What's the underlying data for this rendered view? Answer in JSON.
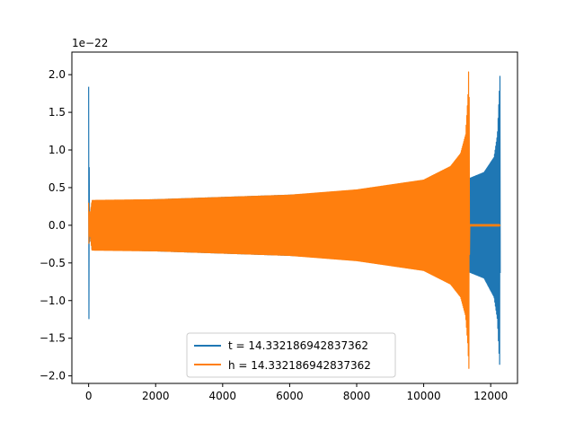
{
  "chart_data": {
    "type": "line",
    "offset_label": "1e−22",
    "xlim": [
      -500,
      12800
    ],
    "ylim": [
      -2.1,
      2.3
    ],
    "x_ticks": [
      0,
      2000,
      4000,
      6000,
      8000,
      10000,
      12000
    ],
    "x_tick_labels": [
      "0",
      "2000",
      "4000",
      "6000",
      "8000",
      "10000",
      "12000"
    ],
    "y_ticks": [
      -2.0,
      -1.5,
      -1.0,
      -0.5,
      0.0,
      0.5,
      1.0,
      1.5,
      2.0
    ],
    "y_tick_labels": [
      "−2.0",
      "−1.5",
      "−1.0",
      "−0.5",
      "0.0",
      "0.5",
      "1.0",
      "1.5",
      "2.0"
    ],
    "grid": false,
    "legend_position": "lower-center",
    "series": [
      {
        "name": "t = 14.332186942837362",
        "color": "#1f77b4",
        "envelope": {
          "x": [
            0,
            30,
            100,
            2000,
            4000,
            6000,
            8000,
            10000,
            11000,
            11350,
            11360,
            11800,
            12100,
            12200,
            12260,
            12275,
            12290
          ],
          "upper": [
            1.84,
            0.05,
            0.32,
            0.34,
            0.37,
            0.4,
            0.45,
            0.52,
            0.6,
            0.62,
            0.62,
            0.7,
            0.9,
            1.2,
            1.8,
            2.12,
            0.0
          ],
          "lower": [
            -1.75,
            -0.05,
            -0.32,
            -0.34,
            -0.37,
            -0.4,
            -0.45,
            -0.52,
            -0.6,
            -0.62,
            -0.62,
            -0.7,
            -0.95,
            -1.25,
            -1.8,
            -1.9,
            0.0
          ]
        }
      },
      {
        "name": "h = 14.332186942837362",
        "color": "#ff7f0e",
        "envelope": {
          "x": [
            0,
            30,
            100,
            2000,
            4000,
            6000,
            8000,
            10000,
            10800,
            11100,
            11250,
            11320,
            11345,
            11355,
            11370,
            12280
          ],
          "upper": [
            0.3,
            0.1,
            0.33,
            0.34,
            0.37,
            0.4,
            0.47,
            0.6,
            0.78,
            0.95,
            1.2,
            1.7,
            2.12,
            2.12,
            0.01,
            0.01
          ],
          "lower": [
            -0.3,
            -0.1,
            -0.33,
            -0.34,
            -0.37,
            -0.4,
            -0.47,
            -0.6,
            -0.78,
            -0.95,
            -1.2,
            -1.6,
            -1.9,
            -1.9,
            -0.01,
            -0.01
          ]
        }
      }
    ]
  }
}
